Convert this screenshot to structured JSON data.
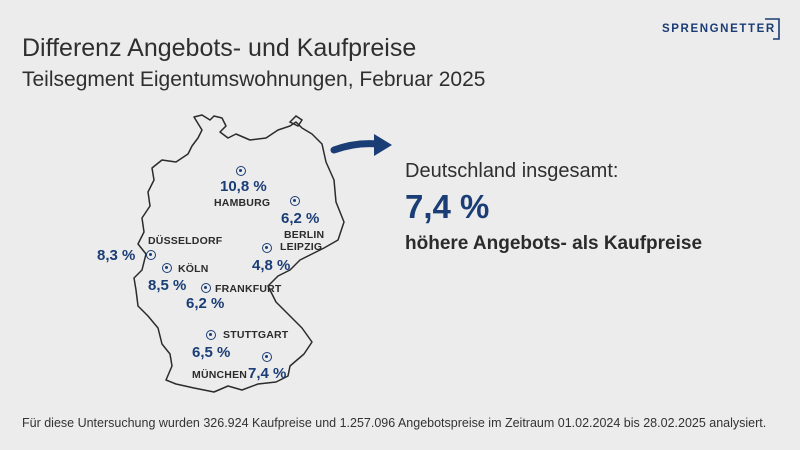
{
  "title": "Differenz Angebots- und Kaufpreise",
  "subtitle": "Teilsegment Eigentumswohnungen, Februar 2025",
  "logo": {
    "text": "SPRENGNETTER",
    "color": "#1b3d75"
  },
  "summary": {
    "label": "Deutschland insgesamt:",
    "value": "7,4 %",
    "caption": "höhere Angebots- als Kaufpreise"
  },
  "cities": [
    {
      "id": "hamburg",
      "name": "HAMBURG",
      "value": "10,8 %"
    },
    {
      "id": "berlin",
      "name": "BERLIN",
      "value": "6,2 %"
    },
    {
      "id": "leipzig",
      "name": "LEIPZIG",
      "value": "4,8 %"
    },
    {
      "id": "duesseldorf",
      "name": "DÜSSELDORF",
      "value": "8,3 %"
    },
    {
      "id": "koeln",
      "name": "KÖLN",
      "value": "8,5 %"
    },
    {
      "id": "frankfurt",
      "name": "FRANKFURT",
      "value": "6,2 %"
    },
    {
      "id": "stuttgart",
      "name": "STUTTGART",
      "value": "6,5 %"
    },
    {
      "id": "muenchen",
      "name": "MÜNCHEN",
      "value": "7,4 %"
    }
  ],
  "footnote": "Für diese Untersuchung wurden 326.924 Kaufpreise und 1.257.096 Angebotspreise im Zeitraum 01.02.2024 bis 28.02.2025 analysiert.",
  "colors": {
    "accent": "#1b3d75",
    "background": "#ececec",
    "outline": "#2b2b2b"
  },
  "icons": {
    "arrow": "arrow-right-icon",
    "marker": "location-marker-icon"
  }
}
